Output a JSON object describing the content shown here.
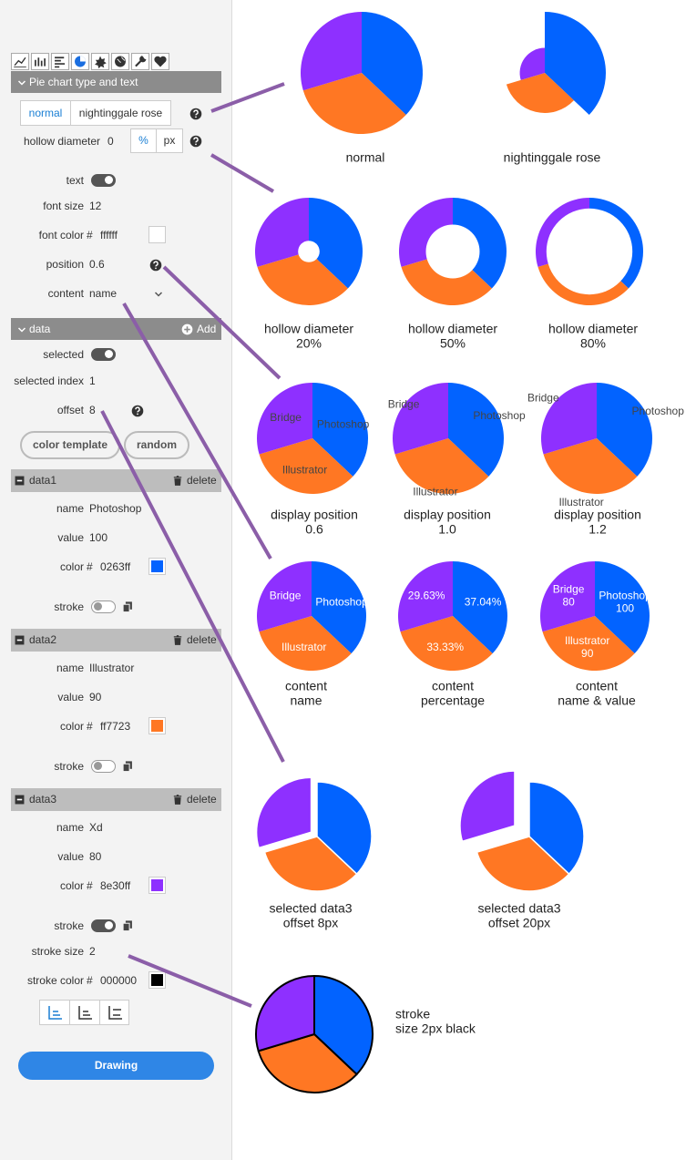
{
  "panel": {
    "section": "Pie chart type and text",
    "types": [
      "normal",
      "nightinggale rose"
    ],
    "hollow": {
      "label": "hollow diameter",
      "value": "0",
      "units": [
        "%",
        "px"
      ]
    },
    "text": {
      "label": "text",
      "on": true
    },
    "font_size": {
      "label": "font size",
      "value": "12"
    },
    "font_color": {
      "label": "font color",
      "hash": "#",
      "value": "ffffff"
    },
    "position": {
      "label": "position",
      "value": "0.6"
    },
    "content": {
      "label": "content",
      "value": "name"
    },
    "data_header": {
      "title": "data",
      "add": "Add"
    },
    "selected": {
      "label": "selected",
      "on": true
    },
    "selected_index": {
      "label": "selected index",
      "value": "1"
    },
    "offset": {
      "label": "offset",
      "value": "8"
    },
    "buttons": [
      "color template",
      "random"
    ],
    "items": [
      {
        "title": "data1",
        "delete": "delete",
        "name_label": "name",
        "name": "Photoshop",
        "value_label": "value",
        "value": 100,
        "color_label": "color",
        "hash": "#",
        "color": "0263ff",
        "stroke_label": "stroke",
        "stroke_on": false
      },
      {
        "title": "data2",
        "delete": "delete",
        "name_label": "name",
        "name": "Illustrator",
        "value_label": "value",
        "value": 90,
        "color_label": "color",
        "hash": "#",
        "color": "ff7723",
        "stroke_label": "stroke",
        "stroke_on": false
      },
      {
        "title": "data3",
        "delete": "delete",
        "name_label": "name",
        "name": "Xd",
        "value_label": "value",
        "value": 80,
        "color_label": "color",
        "hash": "#",
        "color": "8e30ff",
        "stroke_label": "stroke",
        "stroke_on": true,
        "stroke_size_label": "stroke size",
        "stroke_size": "2",
        "stroke_color_label": "stroke color",
        "stroke_color_hash": "#",
        "stroke_color": "000000"
      }
    ],
    "draw": "Drawing"
  },
  "examples": [
    {
      "caption": [
        "normal"
      ]
    },
    {
      "caption": [
        "nightinggale rose"
      ]
    },
    {
      "caption": [
        "hollow diameter",
        "20%"
      ]
    },
    {
      "caption": [
        "hollow diameter",
        "50%"
      ]
    },
    {
      "caption": [
        "hollow diameter",
        "80%"
      ]
    },
    {
      "caption": [
        "display position",
        "0.6"
      ],
      "labels": [
        [
          "Photoshop"
        ],
        [
          "Illustrator"
        ],
        [
          "Bridge"
        ]
      ]
    },
    {
      "caption": [
        "display position",
        "1.0"
      ],
      "labels": [
        [
          "Photoshop"
        ],
        [
          "Illustrator"
        ],
        [
          "Bridge"
        ]
      ]
    },
    {
      "caption": [
        "display position",
        "1.2"
      ],
      "labels": [
        [
          "Photoshop"
        ],
        [
          "Illustrator"
        ],
        [
          "Bridge"
        ]
      ]
    },
    {
      "caption": [
        "content",
        "name"
      ],
      "labels": [
        [
          "Photoshop"
        ],
        [
          "Illustrator"
        ],
        [
          "Bridge"
        ]
      ]
    },
    {
      "caption": [
        "content",
        "percentage"
      ],
      "labels": [
        [
          "37.04%"
        ],
        [
          "33.33%"
        ],
        [
          "29.63%"
        ]
      ]
    },
    {
      "caption": [
        "content",
        "name & value"
      ],
      "labels": [
        [
          "Photoshop",
          "100"
        ],
        [
          "Illustrator",
          "90"
        ],
        [
          "Bridge",
          "80"
        ]
      ]
    },
    {
      "caption": [
        "selected data3",
        "offset 8px"
      ]
    },
    {
      "caption": [
        "selected data3",
        "offset 20px"
      ]
    },
    {
      "caption": [
        "stroke",
        "size 2px black"
      ]
    }
  ]
}
